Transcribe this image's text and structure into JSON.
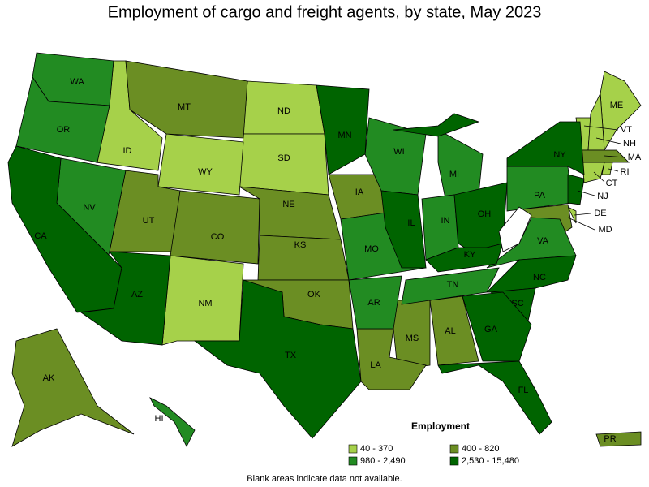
{
  "header": {
    "title": "Employment of cargo and freight agents, by state, May 2023"
  },
  "legend": {
    "title": "Employment",
    "items": [
      {
        "label": "40 - 370",
        "color": "#a6d14a",
        "states": [
          "ID",
          "ND",
          "SD",
          "WY",
          "NM",
          "ME",
          "VT",
          "NH",
          "CT",
          "RI",
          "DE"
        ]
      },
      {
        "label": "400 - 820",
        "color": "#6b8e23",
        "states": [
          "MT",
          "UT",
          "CO",
          "NE",
          "KS",
          "IA",
          "OK",
          "MS",
          "AL",
          "LA",
          "AK",
          "MA",
          "MD",
          "PR"
        ]
      },
      {
        "label": "980 - 2,490",
        "color": "#228b22",
        "states": [
          "WA",
          "OR",
          "NV",
          "WI",
          "MI",
          "IN",
          "MO",
          "AR",
          "TN",
          "VA",
          "PA",
          "HI"
        ]
      },
      {
        "label": "2,530 - 15,480",
        "color": "#006400",
        "states": [
          "CA",
          "AZ",
          "TX",
          "MN",
          "IL",
          "OH",
          "KY",
          "NY",
          "NJ",
          "NC",
          "SC",
          "GA",
          "FL"
        ]
      }
    ]
  },
  "note": "Blank areas indicate data not available."
}
